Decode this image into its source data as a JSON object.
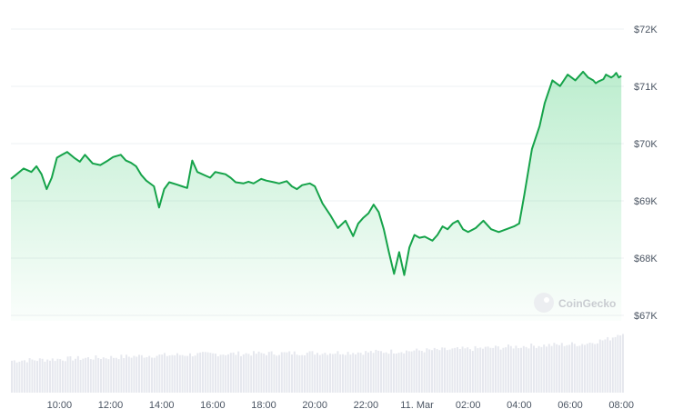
{
  "chart_data": {
    "type": "area",
    "watermark": "CoinGecko",
    "y_ticks": [
      "$67K",
      "$68K",
      "$69K",
      "$70K",
      "$71K",
      "$72K"
    ],
    "y_tick_values": [
      67000,
      68000,
      69000,
      70000,
      71000,
      72000
    ],
    "ylim": [
      67000,
      72000
    ],
    "x_ticks": [
      "10:00",
      "12:00",
      "14:00",
      "16:00",
      "18:00",
      "20:00",
      "22:00",
      "11. Mar",
      "02:00",
      "04:00",
      "06:00",
      "08:00"
    ],
    "x_tick_hours": [
      10,
      12,
      14,
      16,
      18,
      20,
      22,
      24,
      26,
      28,
      30,
      32
    ],
    "xlim": [
      8.1,
      32.1
    ],
    "grid": true,
    "colors": {
      "line": "#16a34a",
      "fill": "#22c55e",
      "volume": "#e6e8ee",
      "grid": "#eef0f3"
    },
    "series": [
      {
        "hours": [
          8.1,
          8.3,
          8.6,
          8.9,
          9.1,
          9.3,
          9.5,
          9.7,
          9.9,
          10.1,
          10.3,
          10.6,
          10.8,
          11.0,
          11.3,
          11.6,
          11.9,
          12.1,
          12.4,
          12.6,
          12.8,
          13.0,
          13.2,
          13.4,
          13.7,
          13.9,
          14.1,
          14.3,
          14.6,
          14.8,
          15.0,
          15.2,
          15.4,
          15.7,
          15.9,
          16.1,
          16.3,
          16.5,
          16.7,
          16.9,
          17.2,
          17.4,
          17.6,
          17.9,
          18.1,
          18.4,
          18.6,
          18.9,
          19.1,
          19.3,
          19.5,
          19.8,
          20.0,
          20.3,
          20.6,
          20.9,
          21.2,
          21.5,
          21.7,
          21.9,
          22.1,
          22.3,
          22.5,
          22.7,
          22.9,
          23.1,
          23.3,
          23.5,
          23.7,
          23.9,
          24.1,
          24.3,
          24.6,
          24.8,
          25.0,
          25.2,
          25.4,
          25.6,
          25.8,
          26.0,
          26.3,
          26.6,
          26.9,
          27.2,
          27.5,
          27.8,
          28.0,
          28.2,
          28.5,
          28.8,
          29.0,
          29.3,
          29.6,
          29.9,
          30.2,
          30.5,
          30.7,
          30.9,
          31.0,
          31.1,
          31.3,
          31.4,
          31.6,
          31.7,
          31.8,
          31.9,
          32.0
        ],
        "values": [
          69480,
          69550,
          69660,
          69600,
          69700,
          69560,
          69300,
          69500,
          69850,
          69900,
          69950,
          69840,
          69780,
          69900,
          69750,
          69720,
          69800,
          69860,
          69900,
          69800,
          69760,
          69700,
          69550,
          69450,
          69350,
          68980,
          69300,
          69420,
          69380,
          69350,
          69320,
          69800,
          69600,
          69540,
          69500,
          69600,
          69580,
          69560,
          69500,
          69420,
          69400,
          69430,
          69400,
          69480,
          69450,
          69420,
          69400,
          69440,
          69350,
          69300,
          69370,
          69400,
          69350,
          69050,
          68850,
          68620,
          68750,
          68480,
          68700,
          68800,
          68880,
          69030,
          68900,
          68600,
          68200,
          67820,
          68200,
          67800,
          68280,
          68500,
          68450,
          68470,
          68400,
          68500,
          68650,
          68600,
          68700,
          68750,
          68600,
          68550,
          68620,
          68750,
          68600,
          68550,
          68600,
          68650,
          68700,
          69200,
          70000,
          70400,
          70800,
          71200,
          71100,
          71300,
          71200,
          71350,
          71250,
          71200,
          71150,
          71180,
          71220,
          71300,
          71250,
          71280,
          71330,
          71250,
          71280
        ]
      }
    ],
    "volume": {
      "hours": [
        8.1,
        10,
        12,
        13.5,
        16,
        19,
        22,
        24,
        26,
        28,
        29.5,
        30.5,
        31.5,
        32.0
      ],
      "fraction": [
        0.38,
        0.4,
        0.42,
        0.44,
        0.46,
        0.47,
        0.48,
        0.5,
        0.52,
        0.55,
        0.57,
        0.58,
        0.64,
        0.72
      ]
    }
  }
}
